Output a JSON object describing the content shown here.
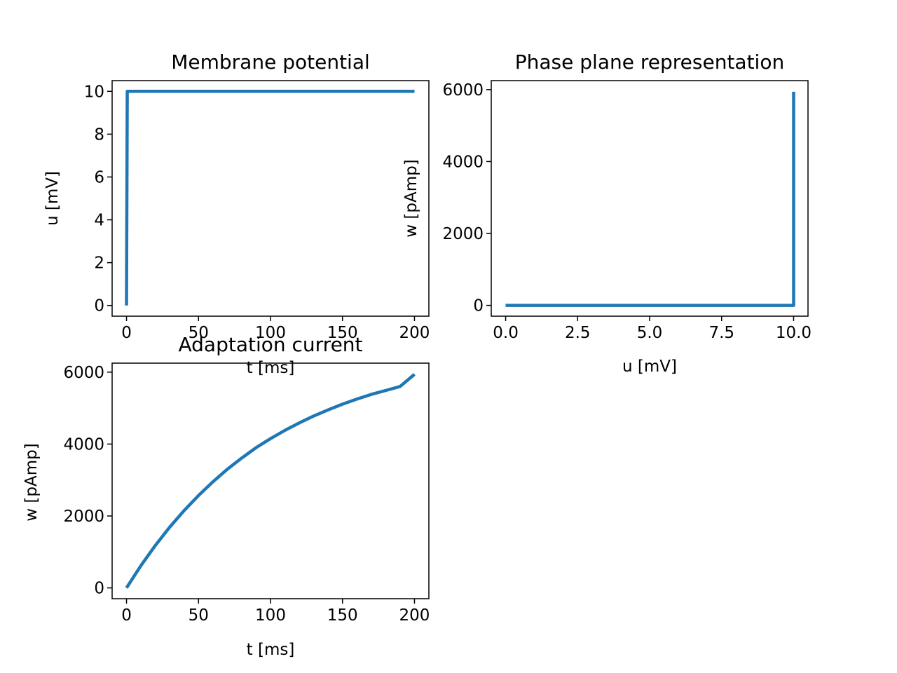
{
  "chart_data": [
    {
      "type": "line",
      "title": "Membrane potential",
      "xlabel": "t [ms]",
      "ylabel": "u [mV]",
      "xlim": [
        -10,
        210
      ],
      "ylim": [
        -0.5,
        10.5
      ],
      "xticks": [
        0,
        50,
        100,
        150,
        200
      ],
      "yticks": [
        0,
        2,
        4,
        6,
        8,
        10
      ],
      "xtick_labels": [
        "0",
        "50",
        "100",
        "150",
        "200"
      ],
      "ytick_labels": [
        "0",
        "2",
        "4",
        "6",
        "8",
        "10"
      ],
      "grid": false,
      "series": [
        {
          "color": "#1f77b4",
          "x": [
            0,
            0.5,
            200
          ],
          "y": [
            0,
            10,
            10
          ]
        }
      ]
    },
    {
      "type": "line",
      "title": "Phase plane representation",
      "xlabel": "u [mV]",
      "ylabel": "w [pAmp]",
      "xlim": [
        -0.5,
        10.5
      ],
      "ylim": [
        -300,
        6250
      ],
      "xticks": [
        0,
        2.5,
        5,
        7.5,
        10
      ],
      "yticks": [
        0,
        2000,
        4000,
        6000
      ],
      "xtick_labels": [
        "0.0",
        "2.5",
        "5.0",
        "7.5",
        "10.0"
      ],
      "ytick_labels": [
        "0",
        "2000",
        "4000",
        "6000"
      ],
      "grid": false,
      "series": [
        {
          "color": "#1f77b4",
          "x": [
            0,
            10,
            10
          ],
          "y": [
            0,
            0,
            5940
          ]
        }
      ]
    },
    {
      "type": "line",
      "title": "Adaptation current",
      "xlabel": "t [ms]",
      "ylabel": "w [pAmp]",
      "xlim": [
        -10,
        210
      ],
      "ylim": [
        -300,
        6250
      ],
      "xticks": [
        0,
        50,
        100,
        150,
        200
      ],
      "yticks": [
        0,
        2000,
        4000,
        6000
      ],
      "xtick_labels": [
        "0",
        "50",
        "100",
        "150",
        "200"
      ],
      "ytick_labels": [
        "0",
        "2000",
        "4000",
        "6000"
      ],
      "grid": false,
      "series": [
        {
          "color": "#1f77b4",
          "x": [
            0,
            10,
            20,
            30,
            40,
            50,
            60,
            70,
            80,
            90,
            100,
            110,
            120,
            130,
            140,
            150,
            160,
            170,
            180,
            190,
            200
          ],
          "y": [
            0,
            620,
            1180,
            1690,
            2150,
            2570,
            2950,
            3300,
            3610,
            3900,
            4150,
            4380,
            4590,
            4780,
            4950,
            5110,
            5250,
            5380,
            5490,
            5600,
            5940
          ]
        }
      ]
    }
  ]
}
